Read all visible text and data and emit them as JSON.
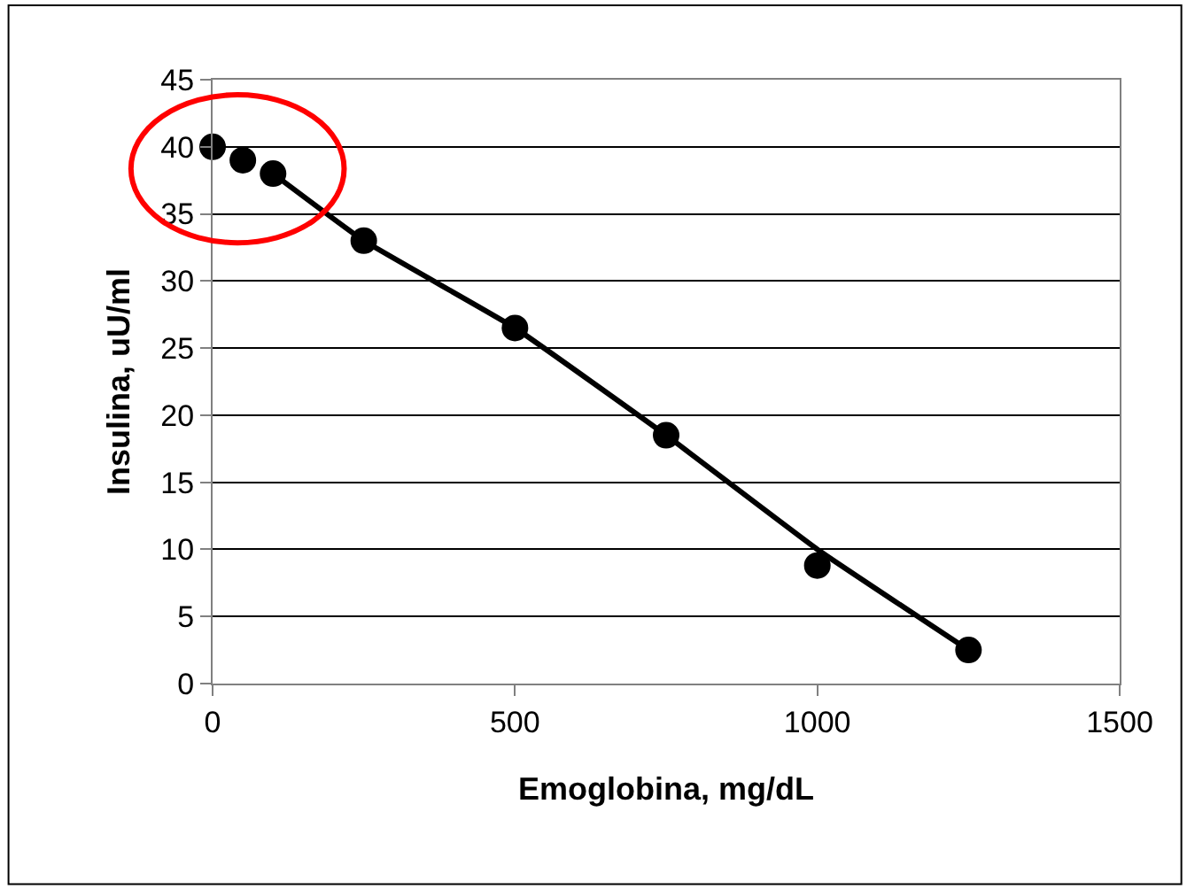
{
  "chart_data": {
    "type": "scatter",
    "xlabel": "Emoglobina, mg/dL",
    "ylabel": "Insulina, uU/ml",
    "xlim": [
      0,
      1500
    ],
    "xticks": [
      0,
      500,
      1000,
      1500
    ],
    "ylim": [
      0,
      45
    ],
    "yticks": [
      0,
      5,
      10,
      15,
      20,
      25,
      30,
      35,
      40,
      45
    ],
    "grid": "y",
    "marker": "circle",
    "series": [
      {
        "color": "#000000",
        "x": [
          0,
          50,
          100,
          250,
          500,
          750,
          1000,
          1250
        ],
        "values": [
          40,
          39,
          38,
          33,
          26.5,
          18.5,
          8.8,
          2.5
        ]
      },
      {
        "type": "line",
        "color": "#000000",
        "marker": "none",
        "line_style": "solid",
        "x": [
          100,
          250,
          500,
          750,
          1000,
          1250
        ],
        "values": [
          38,
          33,
          26.5,
          18.5,
          10,
          2.5
        ]
      }
    ]
  }
}
